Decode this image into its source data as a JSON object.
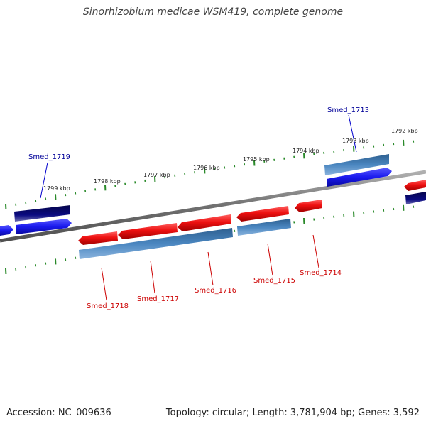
{
  "title": "Sinorhizobium medicae WSM419, complete genome",
  "footer": {
    "accession": "Accession: NC_009636",
    "summary": "Topology: circular; Length: 3,781,904 bp; Genes: 3,592"
  },
  "colors": {
    "backbone": "#808080",
    "tick": "#2a8a2a",
    "forward_gene": "#ee1111",
    "reverse_gene_light": "#4a86c0",
    "reverse_gene_dark": "#0a0a80",
    "reverse_gene_bright": "#1a1aee",
    "label_forward": "#cc0000",
    "label_reverse": "#000099"
  },
  "ticks": {
    "labels": [
      "1792 kbp",
      "1793 kbp",
      "1794 kbp",
      "1795 kbp",
      "1796 kbp",
      "1797 kbp",
      "1798 kbp",
      "1799 kbp"
    ]
  },
  "genes": [
    {
      "name": "Smed_1713",
      "strand": "reverse"
    },
    {
      "name": "Smed_1714",
      "strand": "forward"
    },
    {
      "name": "Smed_1715",
      "strand": "forward"
    },
    {
      "name": "Smed_1716",
      "strand": "forward"
    },
    {
      "name": "Smed_1717",
      "strand": "forward"
    },
    {
      "name": "Smed_1718",
      "strand": "forward"
    },
    {
      "name": "Smed_1719",
      "strand": "reverse"
    }
  ]
}
